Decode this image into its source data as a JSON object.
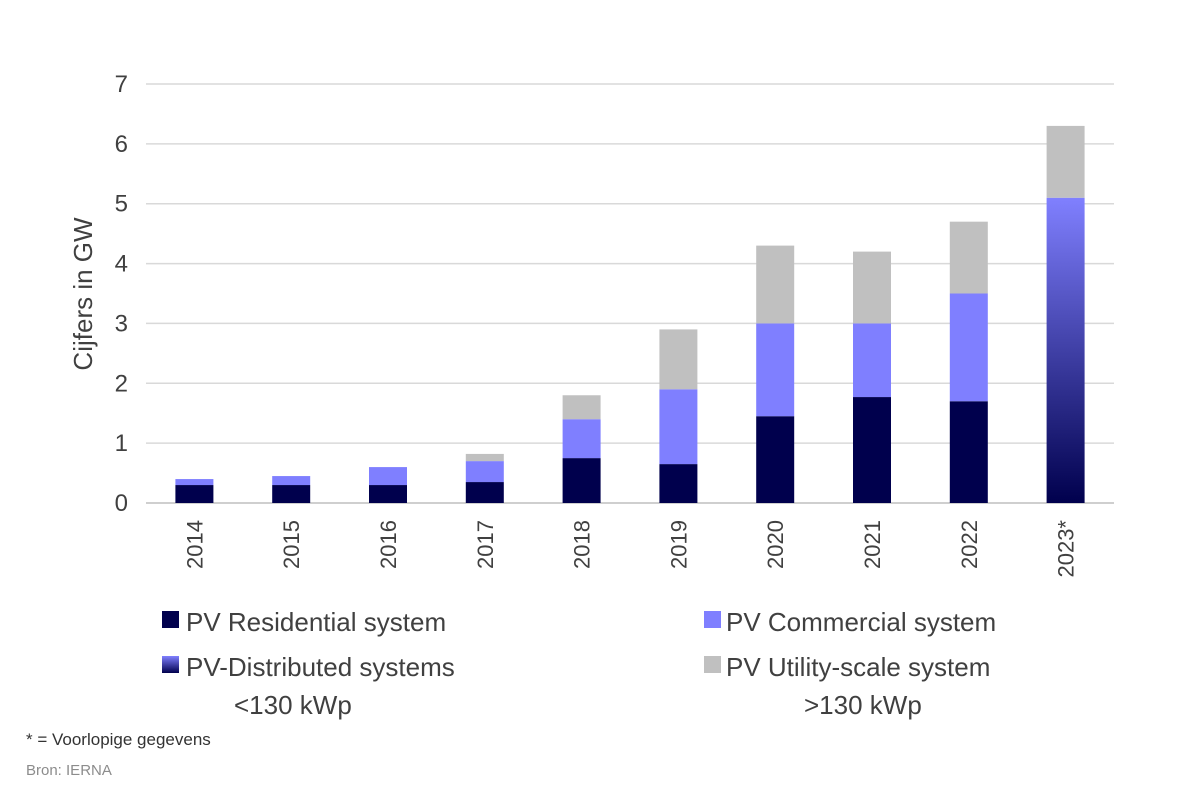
{
  "chart_data": {
    "type": "bar",
    "stacked": true,
    "categories": [
      "2014",
      "2015",
      "2016",
      "2017",
      "2018",
      "2019",
      "2020",
      "2021",
      "2022",
      "2023*"
    ],
    "ylabel": "Cijfers in GW",
    "xlabel": "",
    "ylim": [
      0,
      7
    ],
    "yticks": [
      0,
      1,
      2,
      3,
      4,
      5,
      6,
      7
    ],
    "grid": true,
    "series": [
      {
        "name": "PV Residential system",
        "color": "#00004d",
        "values": [
          0.3,
          0.3,
          0.3,
          0.35,
          0.75,
          0.65,
          1.45,
          1.77,
          1.7,
          null
        ]
      },
      {
        "name": "PV Commercial system",
        "color": "#7f7fff",
        "values": [
          0.1,
          0.15,
          0.3,
          0.35,
          0.65,
          1.25,
          1.55,
          1.23,
          1.8,
          null
        ]
      },
      {
        "name": "PV Utility-scale system",
        "color": "#c0c0c0",
        "values": [
          0,
          0,
          0,
          0.12,
          0.4,
          1.0,
          1.3,
          1.2,
          1.2,
          1.2
        ]
      },
      {
        "name": "PV-Distributed systems",
        "color_top": "#8080ff",
        "color_bottom": "#00004d",
        "values": [
          null,
          null,
          null,
          null,
          null,
          null,
          null,
          null,
          null,
          5.1
        ]
      }
    ],
    "legend": {
      "placement": "bottom",
      "items": [
        {
          "label": "PV Residential system",
          "sublabel": "",
          "swatch": "#00004d"
        },
        {
          "label": "PV Commercial system",
          "sublabel": "",
          "swatch": "#7f7fff"
        },
        {
          "label": "PV-Distributed systems",
          "sublabel": "<130 kWp",
          "swatch": "gradient"
        },
        {
          "label": "PV Utility-scale system",
          "sublabel": ">130 kWp",
          "swatch": "#c0c0c0"
        }
      ]
    }
  },
  "notes": {
    "footnote": "* = Voorlopige gegevens",
    "source": "Bron: IERNA"
  }
}
